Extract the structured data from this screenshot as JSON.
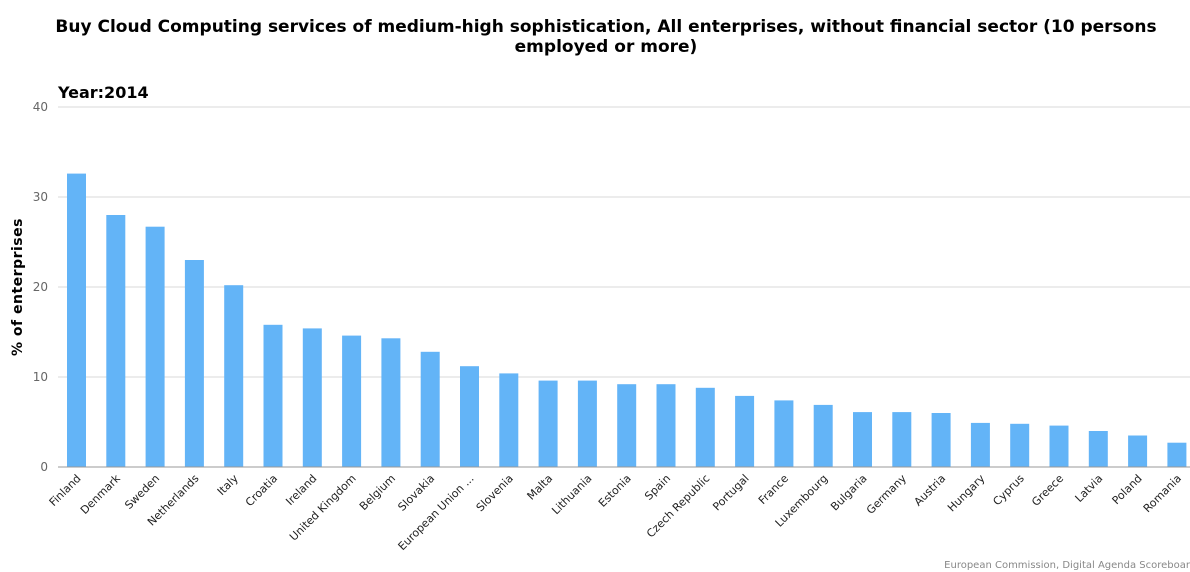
{
  "chart_data": {
    "type": "bar",
    "title": "Buy Cloud Computing services of medium-high sophistication, All enterprises, without financial sector (10 persons employed or more)",
    "subtitle": "Year:2014",
    "xlabel": "",
    "ylabel": "% of enterprises",
    "ylim": [
      0,
      40
    ],
    "yticks": [
      0,
      10,
      20,
      30,
      40
    ],
    "grid": true,
    "legend": "none",
    "bar_color": "#63b4f7",
    "source": "European Commission, Digital Agenda Scoreboar",
    "categories": [
      "Finland",
      "Denmark",
      "Sweden",
      "Netherlands",
      "Italy",
      "Croatia",
      "Ireland",
      "United Kingdom",
      "Belgium",
      "Slovakia",
      "European Union ...",
      "Slovenia",
      "Malta",
      "Lithuania",
      "Estonia",
      "Spain",
      "Czech Republic",
      "Portugal",
      "France",
      "Luxembourg",
      "Bulgaria",
      "Germany",
      "Austria",
      "Hungary",
      "Cyprus",
      "Greece",
      "Latvia",
      "Poland",
      "Romania"
    ],
    "values": [
      32.6,
      28.0,
      26.7,
      23.0,
      20.2,
      15.8,
      15.4,
      14.6,
      14.3,
      12.8,
      11.2,
      10.4,
      9.6,
      9.6,
      9.2,
      9.2,
      8.8,
      7.9,
      7.4,
      6.9,
      6.1,
      6.1,
      6.0,
      4.9,
      4.8,
      4.6,
      4.0,
      3.5,
      2.7
    ]
  }
}
